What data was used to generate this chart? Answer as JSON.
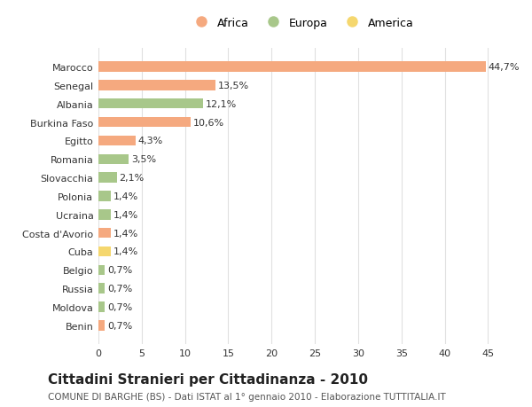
{
  "categories": [
    "Benin",
    "Moldova",
    "Russia",
    "Belgio",
    "Cuba",
    "Costa d'Avorio",
    "Ucraina",
    "Polonia",
    "Slovacchia",
    "Romania",
    "Egitto",
    "Burkina Faso",
    "Albania",
    "Senegal",
    "Marocco"
  ],
  "values": [
    0.7,
    0.7,
    0.7,
    0.7,
    1.4,
    1.4,
    1.4,
    1.4,
    2.1,
    3.5,
    4.3,
    10.6,
    12.1,
    13.5,
    44.7
  ],
  "labels": [
    "0,7%",
    "0,7%",
    "0,7%",
    "0,7%",
    "1,4%",
    "1,4%",
    "1,4%",
    "1,4%",
    "2,1%",
    "3,5%",
    "4,3%",
    "10,6%",
    "12,1%",
    "13,5%",
    "44,7%"
  ],
  "colors": [
    "#f5a97f",
    "#a8c78a",
    "#a8c78a",
    "#a8c78a",
    "#f5d76e",
    "#f5a97f",
    "#a8c78a",
    "#a8c78a",
    "#a8c78a",
    "#a8c78a",
    "#f5a97f",
    "#f5a97f",
    "#a8c78a",
    "#f5a97f",
    "#f5a97f"
  ],
  "legend": [
    {
      "label": "Africa",
      "color": "#f5a97f"
    },
    {
      "label": "Europa",
      "color": "#a8c78a"
    },
    {
      "label": "America",
      "color": "#f5d76e"
    }
  ],
  "title": "Cittadini Stranieri per Cittadinanza - 2010",
  "subtitle": "COMUNE DI BARGHE (BS) - Dati ISTAT al 1° gennaio 2010 - Elaborazione TUTTITALIA.IT",
  "xlim": [
    0,
    47
  ],
  "xticks": [
    0,
    5,
    10,
    15,
    20,
    25,
    30,
    35,
    40,
    45
  ],
  "background_color": "#ffffff",
  "grid_color": "#e0e0e0",
  "bar_height": 0.55,
  "label_fontsize": 8,
  "ytick_fontsize": 8,
  "xtick_fontsize": 8,
  "title_fontsize": 11,
  "subtitle_fontsize": 7.5,
  "legend_fontsize": 9
}
